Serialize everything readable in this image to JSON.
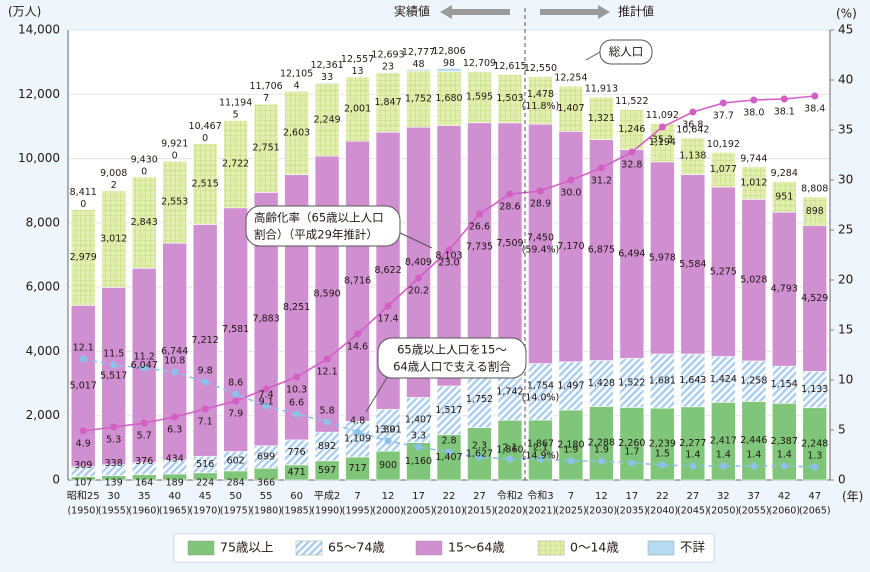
{
  "chart_data": {
    "type": "stacked-bar-line",
    "y_unit": "(万人)",
    "y2_unit": "(%)",
    "x_unit": "(年)",
    "categories": [
      "昭和25",
      "30",
      "35",
      "40",
      "45",
      "50",
      "55",
      "60",
      "平成2",
      "7",
      "12",
      "17",
      "22",
      "27",
      "令和2",
      "令和3",
      "7",
      "12",
      "17",
      "22",
      "27",
      "32",
      "37",
      "42",
      "47"
    ],
    "category_years": [
      "(1950)",
      "(1955)",
      "(1960)",
      "(1965)",
      "(1970)",
      "(1975)",
      "(1980)",
      "(1985)",
      "(1990)",
      "(1995)",
      "(2000)",
      "(2005)",
      "(2010)",
      "(2015)",
      "(2020)",
      "(2021)",
      "(2025)",
      "(2030)",
      "(2035)",
      "(2040)",
      "(2045)",
      "(2050)",
      "(2055)",
      "(2060)",
      "(2065)"
    ],
    "ylim": [
      0,
      14000
    ],
    "yticks": [
      0,
      {
        "value": 2000,
        "label": "2,000"
      },
      {
        "value": 4000,
        "label": "4,000"
      },
      {
        "value": 6000,
        "label": "6,000"
      },
      {
        "value": 8000,
        "label": "8,000"
      },
      {
        "value": 10000,
        "label": "10,000"
      },
      {
        "value": 12000,
        "label": "12,000"
      },
      {
        "value": 14000,
        "label": "14,000"
      }
    ],
    "y2lim": [
      0,
      45
    ],
    "y2ticks": [
      0,
      5,
      10,
      15,
      20,
      25,
      30,
      35,
      40,
      45
    ],
    "series": [
      {
        "name": "75歳以上",
        "color": "#7fc57a",
        "pattern": "none",
        "values": [
          107,
          139,
          164,
          189,
          224,
          284,
          366,
          471,
          597,
          717,
          900,
          1160,
          1407,
          1627,
          1860,
          1867,
          2180,
          2288,
          2260,
          2239,
          2277,
          2417,
          2446,
          2387,
          2248
        ],
        "value_labels": [
          "107",
          "139",
          "164",
          "189",
          "224",
          "284",
          "366",
          "471",
          "597",
          "717",
          "900",
          "1,160",
          "1,407",
          "1,627",
          "1,860",
          "1,867",
          "2,180",
          "2,288",
          "2,260",
          "2,239",
          "2,277",
          "2,417",
          "2,446",
          "2,387",
          "2,248"
        ]
      },
      {
        "name": "65～74歳",
        "color": "#a9cdee",
        "pattern": "diagonal",
        "values": [
          309,
          338,
          376,
          434,
          516,
          602,
          699,
          776,
          892,
          1109,
          1301,
          1407,
          1517,
          1752,
          1742,
          1754,
          1497,
          1428,
          1522,
          1681,
          1643,
          1424,
          1258,
          1154,
          1133
        ],
        "value_labels": [
          "309",
          "338",
          "376",
          "434",
          "516",
          "602",
          "699",
          "776",
          "892",
          "1,109",
          "1,301",
          "1,407",
          "1,517",
          "1,752",
          "1,742",
          "1,754",
          "1,497",
          "1,428",
          "1,522",
          "1,681",
          "1,643",
          "1,424",
          "1,258",
          "1,154",
          "1,133"
        ]
      },
      {
        "name": "15～64歳",
        "color": "#cf8fd0",
        "pattern": "none",
        "values": [
          5017,
          5517,
          6047,
          6744,
          7212,
          7581,
          7883,
          8251,
          8590,
          8716,
          8622,
          8409,
          8103,
          7735,
          7509,
          7450,
          7170,
          6875,
          6494,
          5978,
          5584,
          5275,
          5028,
          4793,
          4529
        ],
        "value_labels": [
          "5,017",
          "5,517",
          "6,047",
          "6,744",
          "7,212",
          "7,581",
          "7,883",
          "8,251",
          "8,590",
          "8,716",
          "8,622",
          "8,409",
          "8,103",
          "7,735",
          "7,509",
          "7,450",
          "7,170",
          "6,875",
          "6,494",
          "5,978",
          "5,584",
          "5,275",
          "5,028",
          "4,793",
          "4,529"
        ]
      },
      {
        "name": "0～14歳",
        "color": "#e2efb0",
        "pattern": "grid",
        "values": [
          2979,
          3012,
          2843,
          2553,
          2515,
          2722,
          2751,
          2603,
          2249,
          2001,
          1847,
          1752,
          1680,
          1595,
          1503,
          1478,
          1407,
          1321,
          1246,
          1194,
          1138,
          1077,
          1012,
          951,
          898
        ],
        "value_labels": [
          "2,979",
          "3,012",
          "2,843",
          "2,553",
          "2,515",
          "2,722",
          "2,751",
          "2,603",
          "2,249",
          "2,001",
          "1,847",
          "1,752",
          "1,680",
          "1,595",
          "1,503",
          "1,478",
          "1,407",
          "1,321",
          "1,246",
          "1,194",
          "1,138",
          "1,077",
          "1,012",
          "951",
          "898"
        ]
      },
      {
        "name": "不詳",
        "color": "#b5daf2",
        "pattern": "none",
        "values": [
          0,
          2,
          0,
          0,
          0,
          5,
          7,
          4,
          33,
          13,
          23,
          48,
          98,
          null,
          null,
          null,
          null,
          null,
          null,
          null,
          null,
          null,
          null,
          null,
          null
        ]
      }
    ],
    "totals": [
      8411,
      9008,
      9430,
      9921,
      10467,
      11194,
      11706,
      12105,
      12361,
      12557,
      12693,
      12777,
      12806,
      12709,
      12615,
      12550,
      12254,
      11913,
      11522,
      11092,
      10642,
      10192,
      9744,
      9284,
      8808
    ],
    "total_labels": [
      "8,411",
      "9,008",
      "9,430",
      "9,921",
      "10,467",
      "11,194",
      "11,706",
      "12,105",
      "12,361",
      "12,557",
      "12,693",
      "12,777",
      "12,806",
      "12,709",
      "12,615",
      "12,550",
      "12,254",
      "11,913",
      "11,522",
      "11,092",
      "10,642",
      "10,192",
      "9,744",
      "9,284",
      "8,808"
    ],
    "shares_2021": {
      "values": [
        14.9,
        14.0,
        59.4,
        11.8
      ],
      "value_labels": [
        "(14.9%)",
        "(14.0%)",
        "(59.4%)",
        "(11.8%)"
      ]
    },
    "lines": [
      {
        "color": "#d35fc6",
        "axis": "y2",
        "dashed": false,
        "values": [
          4.9,
          5.3,
          5.7,
          6.3,
          7.1,
          7.9,
          9.1,
          10.3,
          12.1,
          14.6,
          17.4,
          20.2,
          23.0,
          26.6,
          28.6,
          28.9,
          30.0,
          31.2,
          32.8,
          35.3,
          36.8,
          37.7,
          38.0,
          38.1,
          38.4
        ],
        "value_labels": [
          "4.9",
          "5.3",
          "5.7",
          "6.3",
          "7.1",
          "7.9",
          "9.1",
          "10.3",
          "12.1",
          "14.6",
          "17.4",
          "20.2",
          "23.0",
          "26.6",
          "28.6",
          "28.9",
          "30.0",
          "31.2",
          "32.8",
          "35.3",
          "36.8",
          "37.7",
          "38.0",
          "38.1",
          "38.4"
        ]
      },
      {
        "color": "#8cc2ea",
        "axis": "y2",
        "dashed": true,
        "values": [
          12.1,
          11.5,
          11.2,
          10.8,
          9.8,
          8.6,
          7.4,
          6.6,
          5.8,
          4.8,
          3.9,
          3.3,
          2.8,
          2.3,
          2.1,
          2.1,
          1.9,
          1.9,
          1.7,
          1.5,
          1.4,
          1.4,
          1.4,
          1.4,
          1.3
        ],
        "value_labels": [
          "12.1",
          "11.5",
          "11.2",
          "10.8",
          "9.8",
          "8.6",
          "7.4",
          "6.6",
          "5.8",
          "4.8",
          "3.9",
          "3.3",
          "2.8",
          "2.3",
          "2.1",
          "2.1",
          "1.9",
          "1.9",
          "1.7",
          "1.5",
          "1.4",
          "1.4",
          "1.4",
          "1.4",
          "1.3"
        ]
      }
    ],
    "period_labels": [
      "実績値",
      "推計値"
    ],
    "annotations": {
      "total": "総人口",
      "aging": [
        "高齢化率（65歳以上人口",
        "割合）（平成29年推計）"
      ],
      "support": [
        "65歳以上人口を15～",
        "64歳人口で支える割合"
      ]
    }
  }
}
